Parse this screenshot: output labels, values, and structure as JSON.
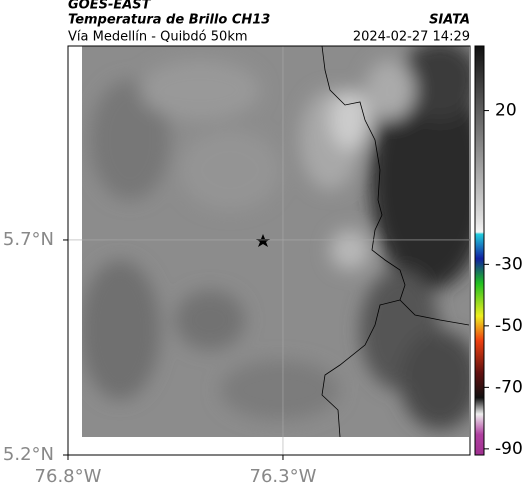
{
  "header": {
    "satellite": "GOES-EAST",
    "title": "Temperatura de Brillo CH13",
    "region": "Vía Medellín - Quibdó 50km",
    "source": "SIATA",
    "timestamp": "2024-02-27 14:29"
  },
  "map": {
    "xlim": [
      -76.8,
      -75.865
    ],
    "ylim": [
      5.2,
      6.151
    ],
    "xticks": [
      {
        "value": -76.8,
        "label": "76.8°W"
      },
      {
        "value": -76.3,
        "label": "76.3°W"
      }
    ],
    "yticks": [
      {
        "value": 5.2,
        "label": "5.2°N"
      },
      {
        "value": 5.7,
        "label": "5.7°N"
      }
    ],
    "grid": true
  },
  "colorbar": {
    "clim": [
      -92,
      41
    ],
    "ticks": [
      20,
      -30,
      -50,
      -70,
      -90
    ]
  }
}
